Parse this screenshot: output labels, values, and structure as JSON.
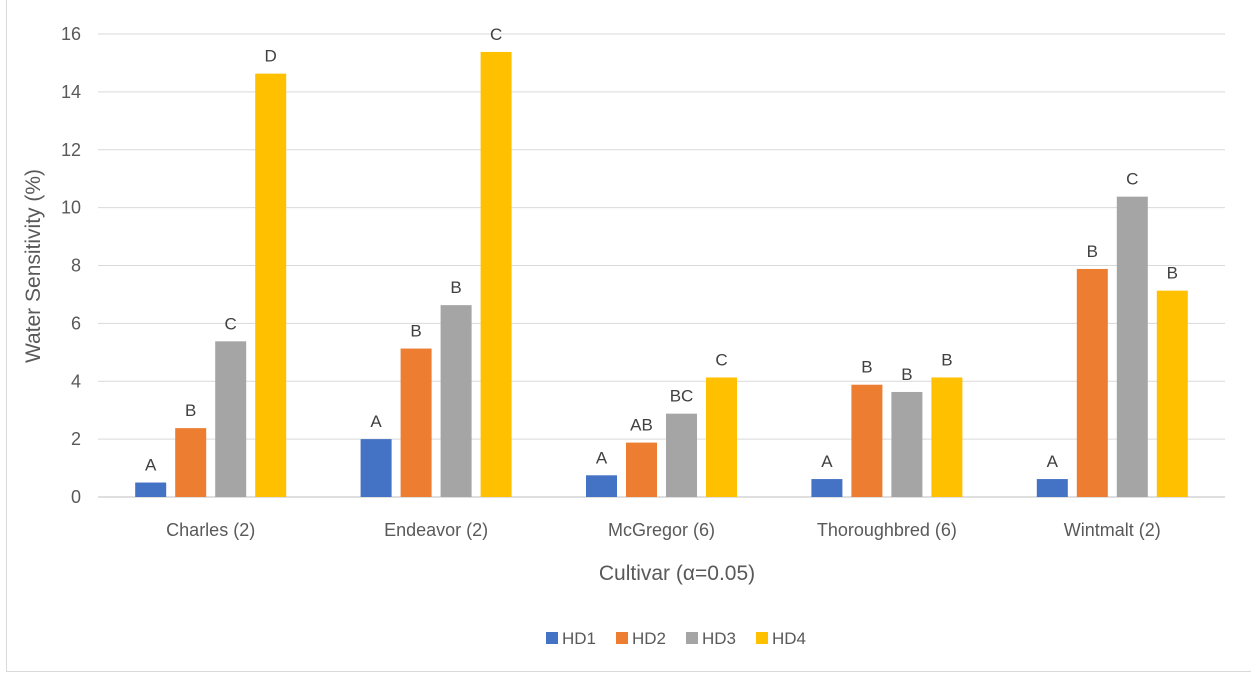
{
  "chart_data": {
    "type": "bar",
    "title": "",
    "xlabel": "Cultivar (α=0.05)",
    "ylabel": "Water Sensitivity (%)",
    "ylim": [
      0,
      16
    ],
    "yticks": [
      0,
      2,
      4,
      6,
      8,
      10,
      12,
      14,
      16
    ],
    "grid": true,
    "legend_position": "bottom",
    "categories": [
      "Charles (2)",
      "Endeavor (2)",
      "McGregor (6)",
      "Thoroughbred (6)",
      "Wintmalt (2)"
    ],
    "series": [
      {
        "name": "HD1",
        "color": "#4472c4",
        "values": [
          0.5,
          2.0,
          0.75,
          0.62,
          0.62
        ],
        "labels": [
          "A",
          "A",
          "A",
          "A",
          "A"
        ]
      },
      {
        "name": "HD2",
        "color": "#ed7d31",
        "values": [
          2.38,
          5.13,
          1.88,
          3.88,
          7.88
        ],
        "labels": [
          "B",
          "B",
          "AB",
          "B",
          "B"
        ]
      },
      {
        "name": "HD3",
        "color": "#a5a5a5",
        "values": [
          5.38,
          6.63,
          2.88,
          3.63,
          10.38
        ],
        "labels": [
          "C",
          "B",
          "BC",
          "B",
          "C"
        ]
      },
      {
        "name": "HD4",
        "color": "#ffc000",
        "values": [
          14.63,
          15.38,
          4.13,
          4.13,
          7.13
        ],
        "labels": [
          "D",
          "C",
          "C",
          "B",
          "B"
        ]
      }
    ]
  }
}
